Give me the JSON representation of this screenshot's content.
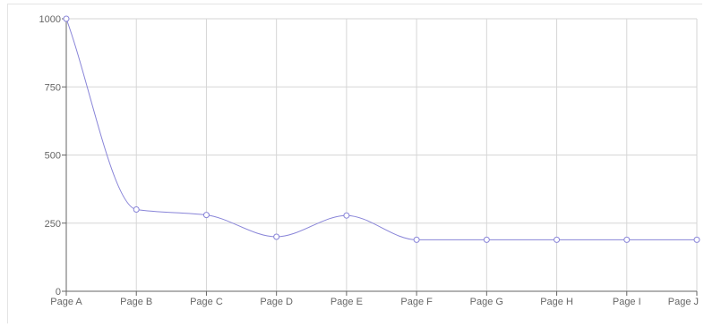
{
  "chart_data": {
    "type": "line",
    "categories": [
      "Page A",
      "Page B",
      "Page C",
      "Page D",
      "Page E",
      "Page F",
      "Page G",
      "Page H",
      "Page I",
      "Page J"
    ],
    "series": [
      {
        "values": [
          1000,
          300,
          280,
          200,
          278,
          189,
          189,
          189,
          189,
          189
        ],
        "color": "#8884d8"
      }
    ],
    "ylim": [
      0,
      1000
    ],
    "yticks": [
      "0",
      "250",
      "500",
      "750",
      "1000"
    ],
    "grid": true,
    "curve": "monotone"
  }
}
